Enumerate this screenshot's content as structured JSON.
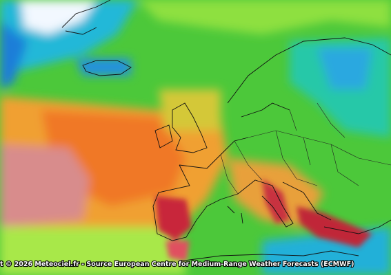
{
  "credit": "t © 2026 Meteociel.fr - Source European Centre for Medium-Range Weather Forecasts (ECMWF)"
}
